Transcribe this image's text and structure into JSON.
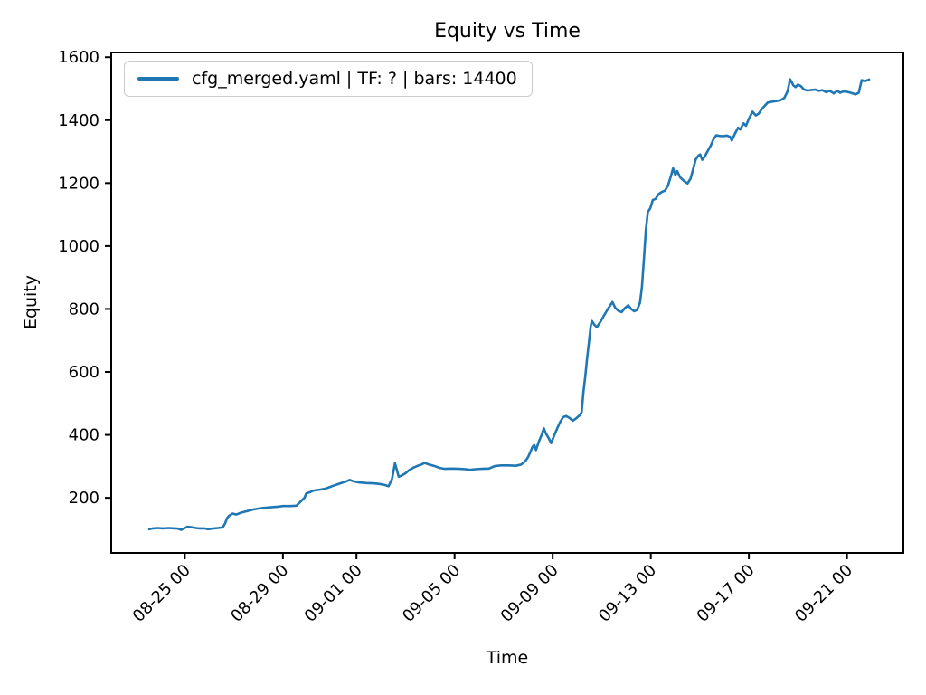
{
  "title": "Equity vs Time",
  "axes": {
    "x_label": "Time",
    "y_label": "Equity"
  },
  "legend": {
    "label": "cfg_merged.yaml | TF: ? | bars: 14400",
    "position": "upper left"
  },
  "colors": {
    "line": "#1f77b4",
    "legend_border": "#cccccc",
    "spine": "#000000",
    "background": "#ffffff"
  },
  "chart_data": {
    "type": "line",
    "title": "Equity vs Time",
    "xlabel": "Time",
    "ylabel": "Equity",
    "grid": false,
    "legend_position": "upper left",
    "x_unit": "days (0 = left edge of axis, tick labels are MM-DD HH)",
    "xlim": [
      0,
      32.3
    ],
    "ylim": [
      25,
      1615
    ],
    "y_ticks": [
      200,
      400,
      600,
      800,
      1000,
      1200,
      1400,
      1600
    ],
    "x_ticks": [
      {
        "t": 3,
        "label": "08-25 00"
      },
      {
        "t": 7,
        "label": "08-29 00"
      },
      {
        "t": 10,
        "label": "09-01 00"
      },
      {
        "t": 14,
        "label": "09-05 00"
      },
      {
        "t": 18,
        "label": "09-09 00"
      },
      {
        "t": 22,
        "label": "09-13 00"
      },
      {
        "t": 26,
        "label": "09-17 00"
      },
      {
        "t": 30,
        "label": "09-21 00"
      }
    ],
    "series": [
      {
        "name": "cfg_merged.yaml | TF: ? | bars: 14400",
        "color": "#1f77b4",
        "points": [
          [
            1.55,
            100
          ],
          [
            1.7,
            103
          ],
          [
            1.9,
            104
          ],
          [
            2.1,
            103
          ],
          [
            2.35,
            104
          ],
          [
            2.6,
            103
          ],
          [
            2.73,
            102
          ],
          [
            2.85,
            98
          ],
          [
            3.0,
            104
          ],
          [
            3.1,
            108
          ],
          [
            3.25,
            107
          ],
          [
            3.45,
            104
          ],
          [
            3.6,
            103
          ],
          [
            3.8,
            103
          ],
          [
            3.95,
            100
          ],
          [
            4.1,
            102
          ],
          [
            4.35,
            104
          ],
          [
            4.55,
            106
          ],
          [
            4.65,
            120
          ],
          [
            4.72,
            135
          ],
          [
            4.8,
            143
          ],
          [
            4.95,
            150
          ],
          [
            5.1,
            147
          ],
          [
            5.3,
            153
          ],
          [
            5.55,
            158
          ],
          [
            5.8,
            163
          ],
          [
            6.0,
            166
          ],
          [
            6.2,
            168
          ],
          [
            6.5,
            170
          ],
          [
            6.8,
            172
          ],
          [
            7.0,
            174
          ],
          [
            7.3,
            174
          ],
          [
            7.55,
            175
          ],
          [
            7.88,
            200
          ],
          [
            7.95,
            214
          ],
          [
            8.1,
            218
          ],
          [
            8.25,
            223
          ],
          [
            8.5,
            226
          ],
          [
            8.73,
            229
          ],
          [
            9.0,
            237
          ],
          [
            9.3,
            245
          ],
          [
            9.58,
            252
          ],
          [
            9.72,
            257
          ],
          [
            9.9,
            252
          ],
          [
            10.1,
            249
          ],
          [
            10.4,
            247
          ],
          [
            10.7,
            246
          ],
          [
            10.94,
            244
          ],
          [
            11.15,
            241
          ],
          [
            11.31,
            237
          ],
          [
            11.45,
            260
          ],
          [
            11.57,
            310
          ],
          [
            11.65,
            287
          ],
          [
            11.72,
            267
          ],
          [
            11.85,
            271
          ],
          [
            12.0,
            278
          ],
          [
            12.15,
            288
          ],
          [
            12.3,
            295
          ],
          [
            12.5,
            302
          ],
          [
            12.65,
            306
          ],
          [
            12.78,
            311
          ],
          [
            12.95,
            306
          ],
          [
            13.15,
            302
          ],
          [
            13.4,
            295
          ],
          [
            13.6,
            292
          ],
          [
            13.9,
            293
          ],
          [
            14.2,
            292
          ],
          [
            14.45,
            291
          ],
          [
            14.62,
            289
          ],
          [
            14.85,
            291
          ],
          [
            15.1,
            292
          ],
          [
            15.4,
            293
          ],
          [
            15.65,
            301
          ],
          [
            15.9,
            303
          ],
          [
            16.2,
            303
          ],
          [
            16.5,
            302
          ],
          [
            16.72,
            306
          ],
          [
            16.88,
            316
          ],
          [
            17.0,
            330
          ],
          [
            17.08,
            344
          ],
          [
            17.18,
            362
          ],
          [
            17.25,
            368
          ],
          [
            17.32,
            352
          ],
          [
            17.45,
            382
          ],
          [
            17.55,
            400
          ],
          [
            17.64,
            421
          ],
          [
            17.72,
            405
          ],
          [
            17.82,
            392
          ],
          [
            17.94,
            374
          ],
          [
            18.05,
            396
          ],
          [
            18.18,
            420
          ],
          [
            18.3,
            440
          ],
          [
            18.42,
            456
          ],
          [
            18.55,
            460
          ],
          [
            18.7,
            453
          ],
          [
            18.82,
            445
          ],
          [
            18.95,
            452
          ],
          [
            19.1,
            462
          ],
          [
            19.18,
            472
          ],
          [
            19.26,
            540
          ],
          [
            19.33,
            585
          ],
          [
            19.4,
            640
          ],
          [
            19.48,
            695
          ],
          [
            19.55,
            745
          ],
          [
            19.6,
            762
          ],
          [
            19.7,
            750
          ],
          [
            19.8,
            742
          ],
          [
            19.95,
            760
          ],
          [
            20.1,
            780
          ],
          [
            20.25,
            800
          ],
          [
            20.38,
            815
          ],
          [
            20.44,
            822
          ],
          [
            20.55,
            804
          ],
          [
            20.68,
            794
          ],
          [
            20.81,
            790
          ],
          [
            20.95,
            803
          ],
          [
            21.08,
            812
          ],
          [
            21.2,
            800
          ],
          [
            21.32,
            793
          ],
          [
            21.44,
            797
          ],
          [
            21.56,
            820
          ],
          [
            21.64,
            870
          ],
          [
            21.72,
            960
          ],
          [
            21.8,
            1050
          ],
          [
            21.88,
            1108
          ],
          [
            21.98,
            1120
          ],
          [
            22.08,
            1146
          ],
          [
            22.2,
            1150
          ],
          [
            22.32,
            1165
          ],
          [
            22.45,
            1172
          ],
          [
            22.58,
            1176
          ],
          [
            22.7,
            1192
          ],
          [
            22.82,
            1222
          ],
          [
            22.91,
            1247
          ],
          [
            23.0,
            1226
          ],
          [
            23.08,
            1238
          ],
          [
            23.2,
            1218
          ],
          [
            23.35,
            1207
          ],
          [
            23.5,
            1199
          ],
          [
            23.62,
            1214
          ],
          [
            23.72,
            1242
          ],
          [
            23.83,
            1275
          ],
          [
            23.95,
            1288
          ],
          [
            24.01,
            1291
          ],
          [
            24.1,
            1274
          ],
          [
            24.2,
            1284
          ],
          [
            24.32,
            1302
          ],
          [
            24.45,
            1320
          ],
          [
            24.55,
            1338
          ],
          [
            24.67,
            1352
          ],
          [
            24.8,
            1350
          ],
          [
            24.95,
            1349
          ],
          [
            25.1,
            1351
          ],
          [
            25.23,
            1347
          ],
          [
            25.3,
            1335
          ],
          [
            25.42,
            1355
          ],
          [
            25.56,
            1376
          ],
          [
            25.65,
            1370
          ],
          [
            25.78,
            1390
          ],
          [
            25.88,
            1382
          ],
          [
            26.0,
            1404
          ],
          [
            26.15,
            1427
          ],
          [
            26.28,
            1415
          ],
          [
            26.4,
            1421
          ],
          [
            26.55,
            1438
          ],
          [
            26.77,
            1456
          ],
          [
            26.95,
            1459
          ],
          [
            27.14,
            1461
          ],
          [
            27.3,
            1464
          ],
          [
            27.44,
            1470
          ],
          [
            27.58,
            1492
          ],
          [
            27.68,
            1530
          ],
          [
            27.75,
            1520
          ],
          [
            27.81,
            1511
          ],
          [
            27.9,
            1505
          ],
          [
            28.0,
            1513
          ],
          [
            28.12,
            1508
          ],
          [
            28.25,
            1497
          ],
          [
            28.4,
            1494
          ],
          [
            28.55,
            1496
          ],
          [
            28.7,
            1497
          ],
          [
            28.85,
            1493
          ],
          [
            29.0,
            1495
          ],
          [
            29.15,
            1489
          ],
          [
            29.3,
            1493
          ],
          [
            29.46,
            1485
          ],
          [
            29.6,
            1493
          ],
          [
            29.72,
            1487
          ],
          [
            29.85,
            1491
          ],
          [
            30.0,
            1490
          ],
          [
            30.15,
            1487
          ],
          [
            30.35,
            1482
          ],
          [
            30.48,
            1487
          ],
          [
            30.55,
            1510
          ],
          [
            30.6,
            1527
          ],
          [
            30.75,
            1524
          ],
          [
            30.9,
            1529
          ]
        ]
      }
    ]
  }
}
